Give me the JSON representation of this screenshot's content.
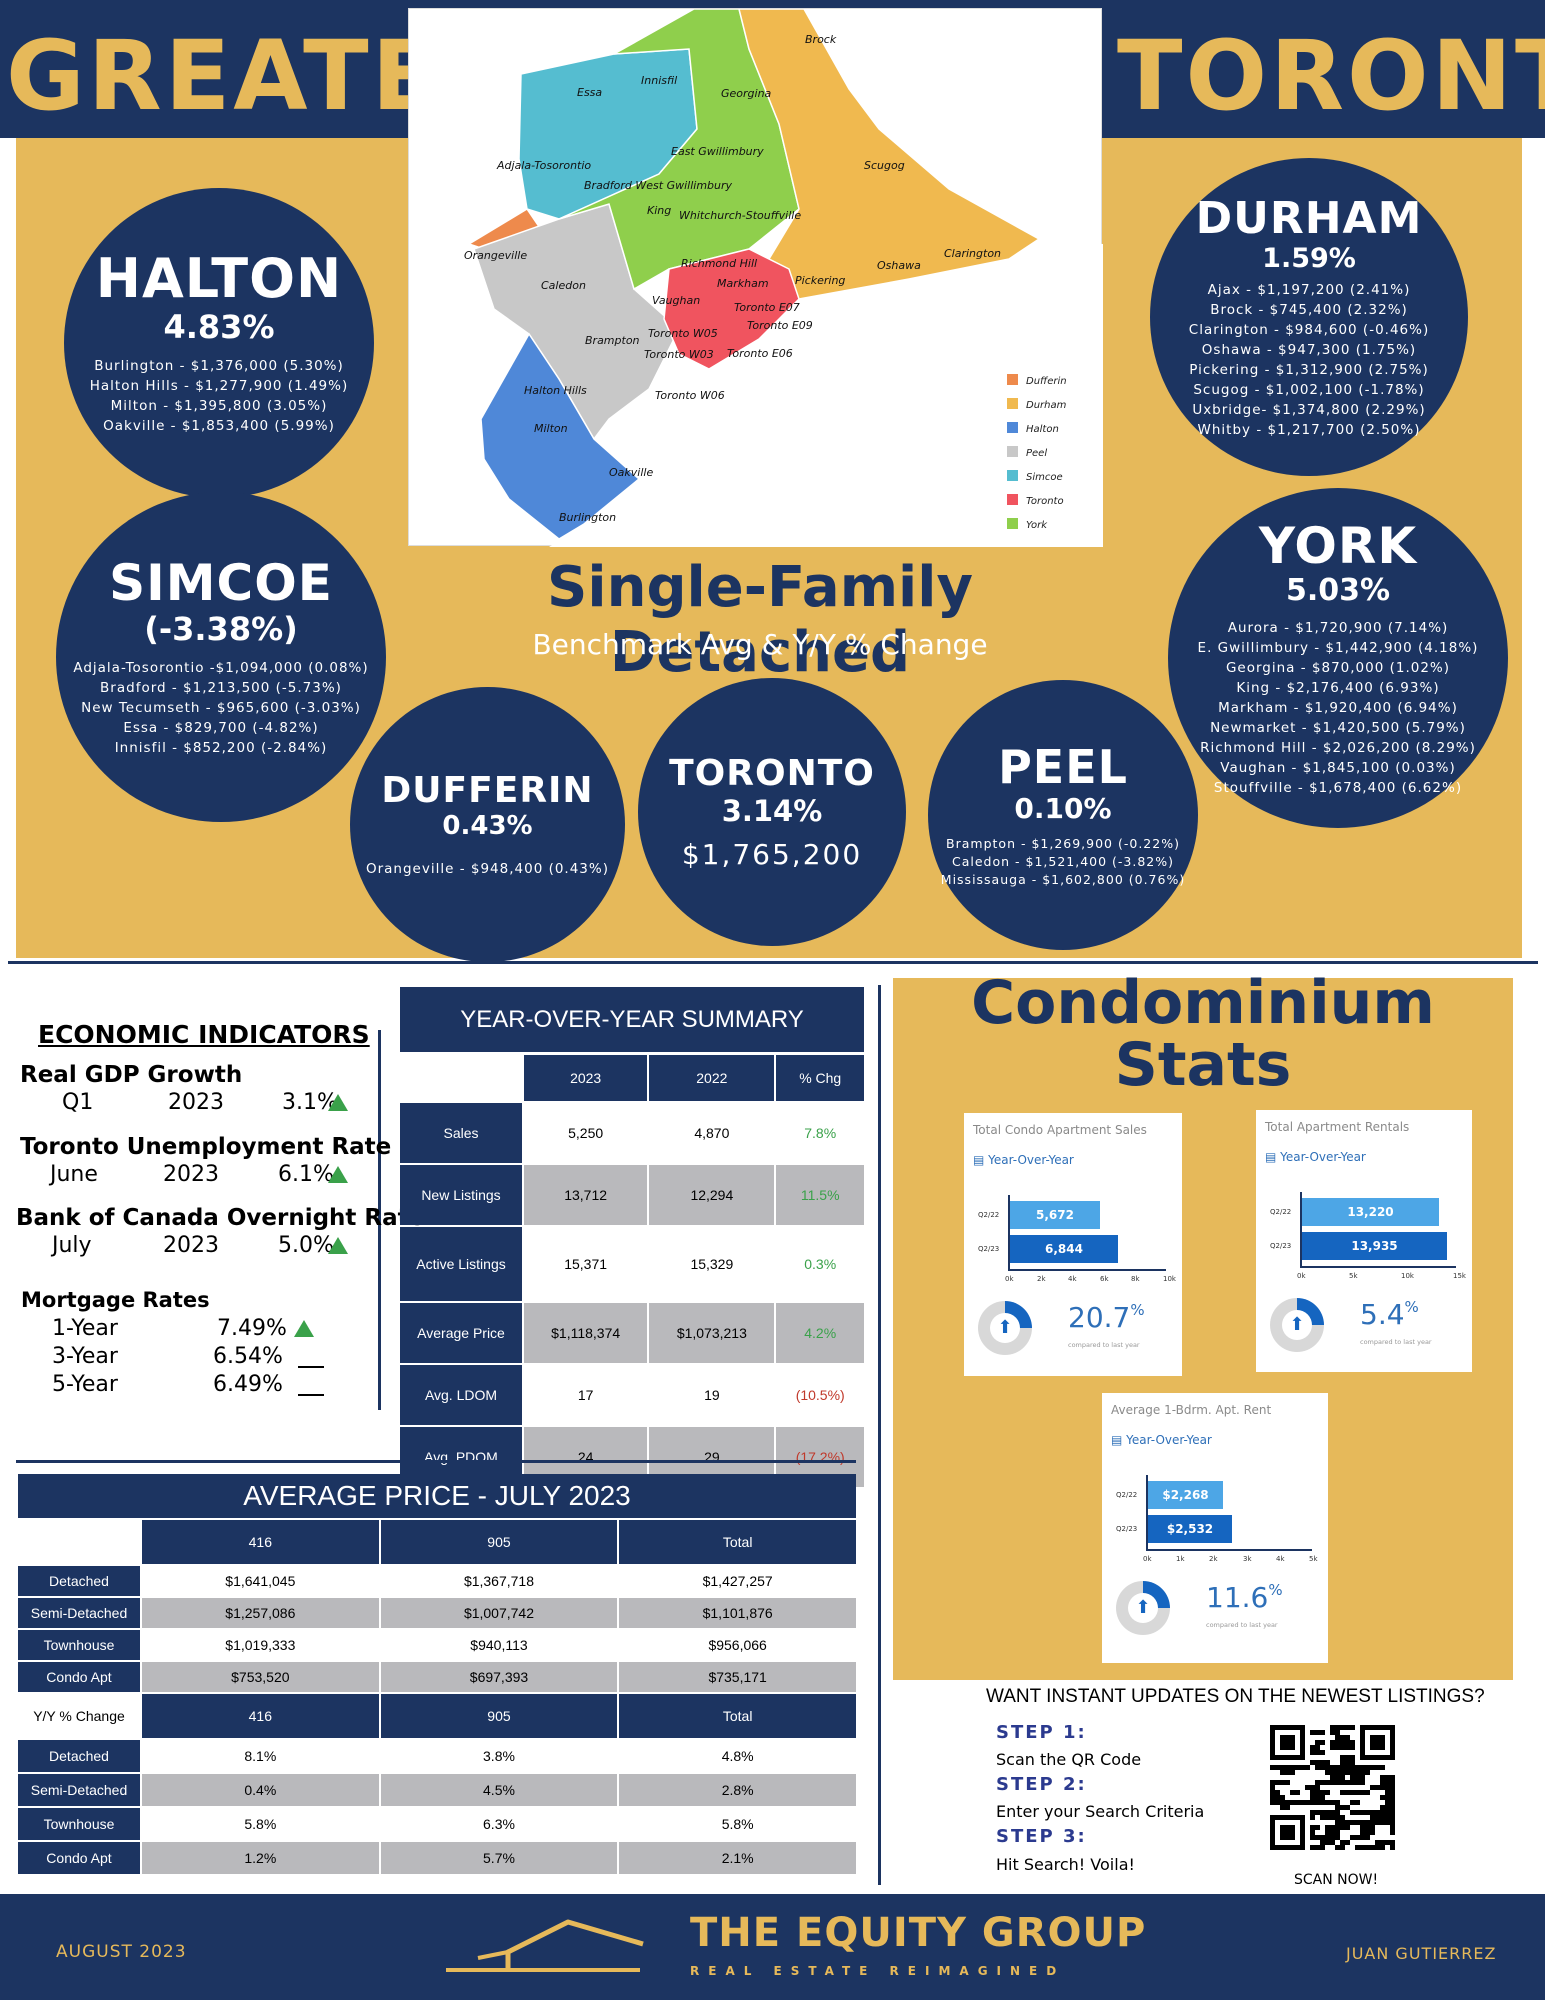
{
  "header": {
    "left_word": "GREATER",
    "right_word": "TORONTO"
  },
  "map": {
    "regions": {
      "essa": "Essa",
      "innisfil": "Innisfil",
      "georgina": "Georgina",
      "brock": "Brock",
      "adjala": "Adjala-Tosorontio",
      "bradford": "Bradford West Gwillimbury",
      "east_gwillimbury": "East Gwillimbury",
      "king": "King",
      "whitchurch": "Whitchurch-Stouffville",
      "scugog": "Scugog",
      "orangeville": "Orangeville",
      "caledon": "Caledon",
      "richmond_hill": "Richmond Hill",
      "markham": "Markham",
      "pickering": "Pickering",
      "oshawa": "Oshawa",
      "clarington": "Clarington",
      "vaughan": "Vaughan",
      "brampton": "Brampton",
      "toronto_e07": "Toronto E07",
      "toronto_e09": "Toronto E09",
      "toronto_w05": "Toronto W05",
      "toronto_w03": "Toronto W03",
      "toronto_e06": "Toronto E06",
      "toronto_w06": "Toronto W06",
      "halton_hills": "Halton Hills",
      "milton": "Milton",
      "oakville": "Oakville",
      "burlington": "Burlington"
    },
    "legend": [
      {
        "label": "Dufferin",
        "color": "#ee8a4c"
      },
      {
        "label": "Durham",
        "color": "#f0b94f"
      },
      {
        "label": "Halton",
        "color": "#4f88d8"
      },
      {
        "label": "Peel",
        "color": "#c8c8c8"
      },
      {
        "label": "Simcoe",
        "color": "#55bdd0"
      },
      {
        "label": "Toronto",
        "color": "#f0545f"
      },
      {
        "label": "York",
        "color": "#8fcf4c"
      }
    ]
  },
  "regions": {
    "halton": {
      "name": "HALTON",
      "pct": "4.83%",
      "lines": [
        "Burlington - $1,376,000 (5.30%)",
        "Halton Hills - $1,277,900 (1.49%)",
        "Milton - $1,395,800 (3.05%)",
        "Oakville - $1,853,400 (5.99%)"
      ]
    },
    "durham": {
      "name": "DURHAM",
      "pct": "1.59%",
      "lines": [
        "Ajax - $1,197,200 (2.41%)",
        "Brock - $745,400 (2.32%)",
        "Clarington - $984,600 (-0.46%)",
        "Oshawa - $947,300 (1.75%)",
        "Pickering - $1,312,900 (2.75%)",
        "Scugog - $1,002,100 (-1.78%)",
        "Uxbridge- $1,374,800 (2.29%)",
        "Whitby - $1,217,700 (2.50%)"
      ]
    },
    "simcoe": {
      "name": "SIMCOE",
      "pct": "(-3.38%)",
      "lines": [
        "Adjala-Tosorontio -$1,094,000 (0.08%)",
        "Bradford - $1,213,500 (-5.73%)",
        "New Tecumseth - $965,600 (-3.03%)",
        "Essa - $829,700 (-4.82%)",
        "Innisfil - $852,200 (-2.84%)"
      ]
    },
    "york": {
      "name": "YORK",
      "pct": "5.03%",
      "lines": [
        "Aurora - $1,720,900 (7.14%)",
        "E. Gwillimbury - $1,442,900 (4.18%)",
        "Georgina - $870,000 (1.02%)",
        "King - $2,176,400 (6.93%)",
        "Markham - $1,920,400 (6.94%)",
        "Newmarket - $1,420,500 (5.79%)",
        "Richmond Hill - $2,026,200 (8.29%)",
        "Vaughan - $1,845,100 (0.03%)",
        "Stouffville - $1,678,400 (6.62%)"
      ]
    },
    "dufferin": {
      "name": "DUFFERIN",
      "pct": "0.43%",
      "lines": [
        "Orangeville - $948,400 (0.43%)"
      ]
    },
    "toronto": {
      "name": "TORONTO",
      "pct": "3.14%",
      "price": "$1,765,200"
    },
    "peel": {
      "name": "PEEL",
      "pct": "0.10%",
      "lines": [
        "Brampton - $1,269,900 (-0.22%)",
        "Caledon - $1,521,400 (-3.82%)",
        "Mississauga - $1,602,800 (0.76%)"
      ]
    }
  },
  "sfd": {
    "title": "Single-Family Detached",
    "subtitle": "Benchmark Avg & Y/Y % Change"
  },
  "economic": {
    "title": "ECONOMIC INDICATORS",
    "gdp": {
      "label": "Real GDP Growth",
      "period": "Q1",
      "year": "2023",
      "value": "3.1%"
    },
    "unemployment": {
      "label": "Toronto Unemployment Rate (SA)",
      "period": "June",
      "year": "2023",
      "value": "6.1%"
    },
    "overnight": {
      "label": "Bank of Canada Overnight Rate",
      "period": "July",
      "year": "2023",
      "value": "5.0%"
    },
    "mortgage": {
      "label": "Mortgage Rates",
      "rows": [
        {
          "term": "1-Year",
          "rate": "7.49%",
          "trend": "up"
        },
        {
          "term": "3-Year",
          "rate": "6.54%",
          "trend": "flat"
        },
        {
          "term": "5-Year",
          "rate": "6.49%",
          "trend": "flat"
        }
      ]
    }
  },
  "yoy": {
    "title": "YEAR-OVER-YEAR SUMMARY",
    "headers": [
      "2023",
      "2022",
      "% Chg"
    ],
    "rows": [
      {
        "label": "Sales",
        "a": "5,250",
        "b": "4,870",
        "chg": "7.8%",
        "dir": "pos"
      },
      {
        "label": "New Listings",
        "a": "13,712",
        "b": "12,294",
        "chg": "11.5%",
        "dir": "pos"
      },
      {
        "label": "Active Listings",
        "a": "15,371",
        "b": "15,329",
        "chg": "0.3%",
        "dir": "pos"
      },
      {
        "label": "Average Price",
        "a": "$1,118,374",
        "b": "$1,073,213",
        "chg": "4.2%",
        "dir": "pos"
      },
      {
        "label": "Avg. LDOM",
        "a": "17",
        "b": "19",
        "chg": "(10.5%)",
        "dir": "neg"
      },
      {
        "label": "Avg. PDOM",
        "a": "24",
        "b": "29",
        "chg": "(17.2%)",
        "dir": "neg"
      }
    ]
  },
  "avg_price": {
    "title": "AVERAGE PRICE - JULY 2023",
    "headers": [
      "416",
      "905",
      "Total"
    ],
    "rows": [
      {
        "label": "Detached",
        "a": "$1,641,045",
        "b": "$1,367,718",
        "c": "$1,427,257"
      },
      {
        "label": "Semi-Detached",
        "a": "$1,257,086",
        "b": "$1,007,742",
        "c": "$1,101,876"
      },
      {
        "label": "Townhouse",
        "a": "$1,019,333",
        "b": "$940,113",
        "c": "$956,066"
      },
      {
        "label": "Condo Apt",
        "a": "$753,520",
        "b": "$697,393",
        "c": "$735,171"
      }
    ],
    "yy_label": "Y/Y % Change",
    "yy_rows": [
      {
        "label": "Detached",
        "a": "8.1%",
        "b": "3.8%",
        "c": "4.8%"
      },
      {
        "label": "Semi-Detached",
        "a": "0.4%",
        "b": "4.5%",
        "c": "2.8%"
      },
      {
        "label": "Townhouse",
        "a": "5.8%",
        "b": "6.3%",
        "c": "5.8%"
      },
      {
        "label": "Condo Apt",
        "a": "1.2%",
        "b": "5.7%",
        "c": "2.1%"
      }
    ]
  },
  "condo": {
    "title_line1": "Condominium",
    "title_line2": "Stats",
    "sales": {
      "title": "Total Condo Apartment Sales",
      "yoy": "Year-Over-Year",
      "rows": [
        {
          "label": "Q2/22",
          "value": 5672,
          "display": "5,672"
        },
        {
          "label": "Q2/23",
          "value": 6844,
          "display": "6,844"
        }
      ],
      "ticks": [
        "0k",
        "2k",
        "4k",
        "6k",
        "8k",
        "10k"
      ],
      "max": 10000,
      "pct": "20.7",
      "pct_sign": "%",
      "caption": "compared to last year"
    },
    "rentals": {
      "title": "Total Apartment Rentals",
      "yoy": "Year-Over-Year",
      "rows": [
        {
          "label": "Q2/22",
          "value": 13220,
          "display": "13,220"
        },
        {
          "label": "Q2/23",
          "value": 13935,
          "display": "13,935"
        }
      ],
      "ticks": [
        "0k",
        "5k",
        "10k",
        "15k"
      ],
      "max": 15000,
      "pct": "5.4",
      "pct_sign": "%",
      "caption": "compared to last year"
    },
    "rent": {
      "title": "Average 1-Bdrm. Apt. Rent",
      "yoy": "Year-Over-Year",
      "rows": [
        {
          "label": "Q2/22",
          "value": 2268,
          "display": "$2,268"
        },
        {
          "label": "Q2/23",
          "value": 2532,
          "display": "$2,532"
        }
      ],
      "ticks": [
        "0k",
        "1k",
        "2k",
        "3k",
        "4k",
        "5k"
      ],
      "max": 5000,
      "pct": "11.6",
      "pct_sign": "%",
      "caption": "compared to last year"
    }
  },
  "instant": {
    "heading": "WANT INSTANT UPDATES ON THE NEWEST LISTINGS?",
    "steps": [
      {
        "h": "STEP 1:",
        "t": "Scan the QR Code"
      },
      {
        "h": "STEP 2:",
        "t": "Enter your Search Criteria"
      },
      {
        "h": "STEP 3:",
        "t": "Hit Search! Voila!"
      }
    ],
    "scan": "SCAN NOW!"
  },
  "footer": {
    "date": "AUGUST 2023",
    "brand": "THE EQUITY GROUP",
    "tagline": "REAL ESTATE REIMAGINED",
    "agent": "JUAN GUTIERREZ"
  },
  "colors": {
    "navy": "#1c3461",
    "gold": "#e6b95a",
    "up": "#3aa14a",
    "down": "#c0392b",
    "bar_light": "#4da6e6",
    "bar_dark": "#1565c0"
  }
}
